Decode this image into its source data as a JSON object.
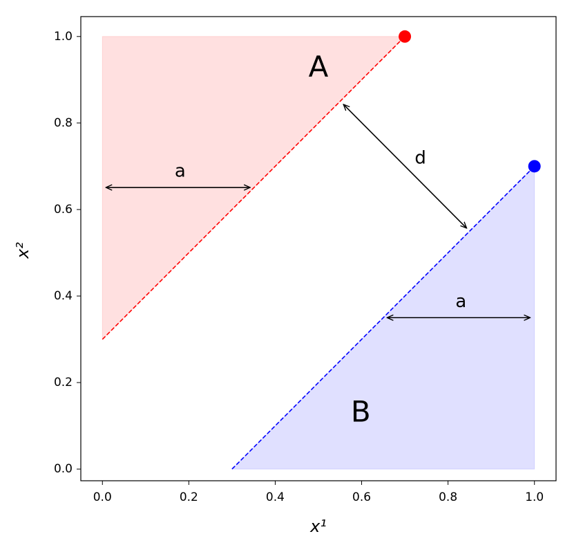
{
  "chart_data": {
    "type": "line",
    "xlabel": "x¹",
    "ylabel": "x²",
    "xlim": [
      -0.05,
      1.05
    ],
    "ylim": [
      -0.027,
      1.046
    ],
    "xticks": [
      {
        "value": 0,
        "label": "0.0"
      },
      0.2,
      0.4,
      0.6,
      0.8,
      {
        "value": 1,
        "label": "1.0"
      }
    ],
    "yticks": [
      {
        "value": 0,
        "label": "0.0"
      },
      0.2,
      0.4,
      0.6,
      0.8,
      {
        "value": 1,
        "label": "1.0"
      }
    ],
    "regions": [
      {
        "label": "A",
        "color": "#ff0000",
        "x": [
          0,
          0,
          0.7
        ],
        "y": [
          0.3,
          1.0,
          1.0
        ],
        "label_xy": [
          0.5,
          0.925
        ]
      },
      {
        "label": "B",
        "color": "#0000ff",
        "x": [
          0.3,
          1.0,
          1.0
        ],
        "y": [
          0.0,
          0.0,
          0.7
        ],
        "label_xy": [
          0.598,
          0.128
        ]
      }
    ],
    "series": [
      {
        "color": "#ff0000",
        "x": [
          0,
          0.7
        ],
        "values": [
          0.3,
          1.0
        ]
      },
      {
        "color": "#0000ff",
        "x": [
          0.3,
          1.0
        ],
        "values": [
          0.0,
          0.7
        ]
      }
    ],
    "points": [
      {
        "color": "#ff0000",
        "x": 0.7,
        "y": 1.0
      },
      {
        "color": "#0000ff",
        "x": 1.0,
        "y": 0.7
      }
    ],
    "annotations": [
      {
        "text": "a",
        "xy": [
          0.18,
          0.688
        ],
        "arrow": [
          [
            0.008,
            0.651
          ],
          [
            0.342,
            0.651
          ]
        ]
      },
      {
        "text": "a",
        "xy": [
          0.83,
          0.386
        ],
        "arrow": [
          [
            0.659,
            0.35
          ],
          [
            0.99,
            0.35
          ]
        ]
      },
      {
        "text": "d",
        "xy": [
          0.736,
          0.718
        ],
        "arrow": [
          [
            0.558,
            0.843
          ],
          [
            0.843,
            0.557
          ]
        ]
      }
    ]
  }
}
